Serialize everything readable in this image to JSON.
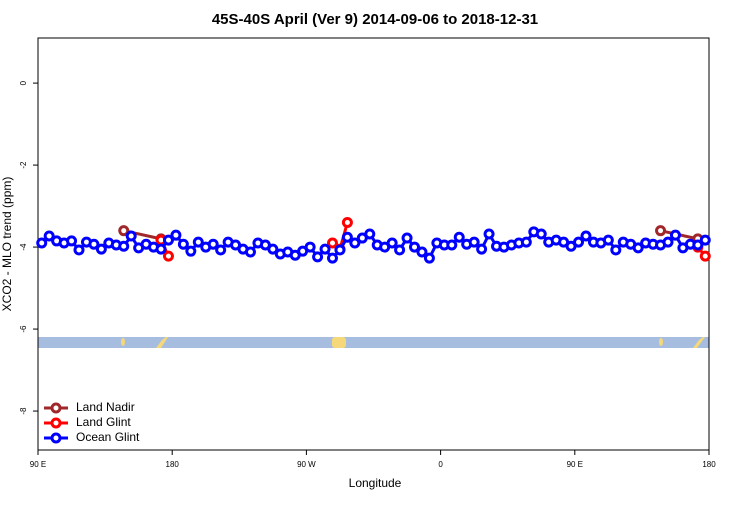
{
  "chart_data": {
    "type": "line",
    "title": "45S-40S April (Ver 9)   2014-09-06 to 2018-12-31",
    "x_label": "Longitude",
    "y_label": "XCO2 - MLO trend (ppm)",
    "xlim": [
      90,
      540
    ],
    "xticks": [
      {
        "value": 90,
        "label": "90 E"
      },
      180,
      {
        "value": 270,
        "label": "90 W"
      },
      {
        "value": 360,
        "label": "0"
      },
      {
        "value": 450,
        "label": "90 E"
      },
      {
        "value": 540,
        "label": "180"
      }
    ],
    "ylim": [
      -8.95,
      1.1
    ],
    "yticks": [
      0,
      -2,
      -4,
      -6,
      -8
    ],
    "legend": "bottom-left",
    "series": [
      {
        "name": "Land Nadir",
        "color": "#a0282a",
        "x": [
          147.5,
          172.5,
          507.5,
          532.5
        ],
        "values": [
          -3.6,
          -3.8,
          -3.6,
          -3.8
        ]
      },
      {
        "name": "Land Glint",
        "color": "#ff0000",
        "x": [
          172.5,
          177.5,
          287.5,
          292.5,
          297.5,
          532.5,
          537.5
        ],
        "values": [
          -3.83,
          -4.22,
          -3.9,
          -4.05,
          -3.4,
          -4.0,
          -4.22
        ]
      },
      {
        "name": "Ocean Glint",
        "color": "#0000ff",
        "x": [
          92.5,
          97.5,
          102.5,
          107.5,
          112.5,
          117.5,
          122.5,
          127.5,
          132.5,
          137.5,
          142.5,
          147.5,
          152.5,
          157.5,
          162.5,
          167.5,
          172.5,
          177.5,
          182.5,
          187.5,
          192.5,
          197.5,
          202.5,
          207.5,
          212.5,
          217.5,
          222.5,
          227.5,
          232.5,
          237.5,
          242.5,
          247.5,
          252.5,
          257.5,
          262.5,
          267.5,
          272.5,
          277.5,
          282.5,
          287.5,
          292.5,
          297.5,
          302.5,
          307.5,
          312.5,
          317.5,
          322.5,
          327.5,
          332.5,
          337.5,
          342.5,
          347.5,
          352.5,
          357.5,
          362.5,
          367.5,
          372.5,
          377.5,
          382.5,
          387.5,
          392.5,
          397.5,
          402.5,
          407.5,
          412.5,
          417.5,
          422.5,
          427.5,
          432.5,
          437.5,
          442.5,
          447.5,
          452.5,
          457.5,
          462.5,
          467.5,
          472.5,
          477.5,
          482.5,
          487.5,
          492.5,
          497.5,
          502.5,
          507.5,
          512.5,
          517.5,
          522.5,
          527.5,
          532.5,
          537.5
        ],
        "values": [
          -3.9,
          -3.73,
          -3.85,
          -3.9,
          -3.85,
          -4.07,
          -3.88,
          -3.93,
          -4.05,
          -3.9,
          -3.95,
          -3.98,
          -3.73,
          -4.02,
          -3.93,
          -4.0,
          -4.05,
          -3.83,
          -3.71,
          -3.93,
          -4.1,
          -3.88,
          -4.0,
          -3.93,
          -4.07,
          -3.88,
          -3.95,
          -4.05,
          -4.12,
          -3.9,
          -3.95,
          -4.05,
          -4.17,
          -4.12,
          -4.2,
          -4.1,
          -4.0,
          -4.24,
          -4.05,
          -4.27,
          -4.07,
          -3.76,
          -3.9,
          -3.78,
          -3.68,
          -3.95,
          -4.0,
          -3.9,
          -4.07,
          -3.78,
          -4.0,
          -4.12,
          -4.27,
          -3.9,
          -3.95,
          -3.95,
          -3.76,
          -3.93,
          -3.88,
          -4.05,
          -3.68,
          -3.98,
          -4.0,
          -3.95,
          -3.9,
          -3.88,
          -3.63,
          -3.68,
          -3.88,
          -3.83,
          -3.88,
          -3.98,
          -3.88,
          -3.73,
          -3.88,
          -3.9,
          -3.83,
          -4.07,
          -3.88,
          -3.93,
          -4.02,
          -3.9,
          -3.93,
          -3.95,
          -3.88,
          -3.71,
          -4.02,
          -3.93,
          -3.95,
          -3.83
        ]
      }
    ]
  }
}
